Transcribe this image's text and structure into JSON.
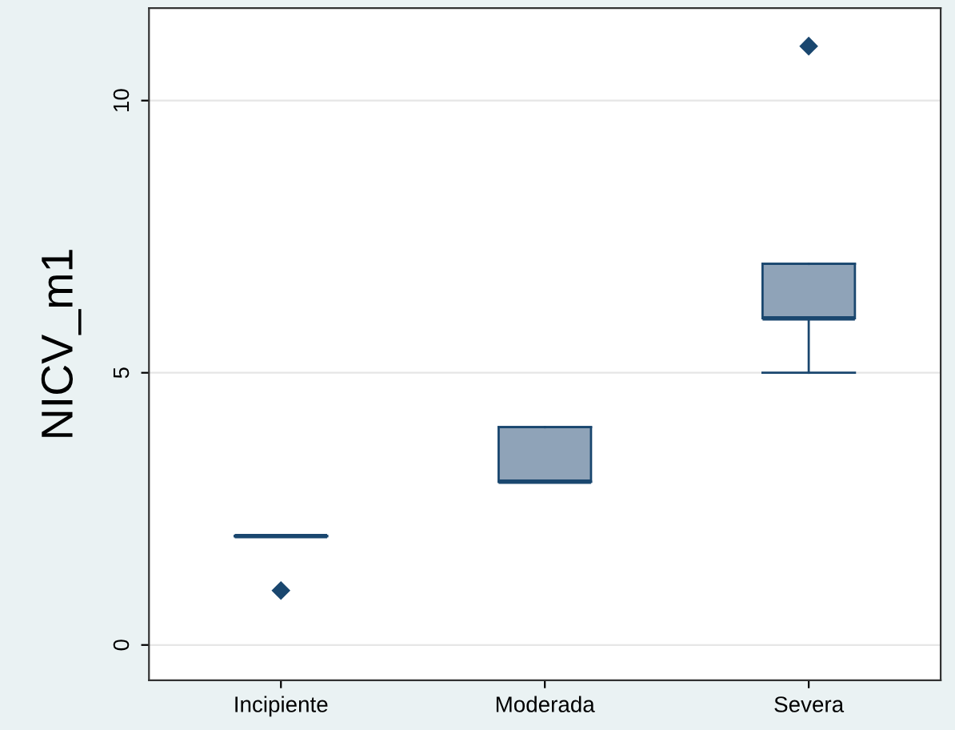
{
  "chart_data": {
    "type": "box",
    "ylabel": "NICV_m1",
    "categories": [
      "Incipiente",
      "Moderada",
      "Severa"
    ],
    "series": [
      {
        "colors": [
          "#1a476f",
          "#8fa3b8",
          "#8fa3b8"
        ],
        "boxes": [
          {
            "low": 2,
            "q1": 2,
            "median": 2,
            "q3": 2,
            "high": 2,
            "outliers": [
              1
            ]
          },
          {
            "low": 3,
            "q1": 3,
            "median": 3,
            "q3": 4,
            "high": 4
          },
          {
            "low": 5,
            "q1": 6,
            "median": 6,
            "q3": 7,
            "high": 7,
            "outliers": [
              11
            ]
          }
        ]
      }
    ],
    "ylim": [
      -0.65,
      11.7
    ],
    "yticks": [
      0,
      5,
      10
    ],
    "grid": "y",
    "marker": "diamond"
  }
}
